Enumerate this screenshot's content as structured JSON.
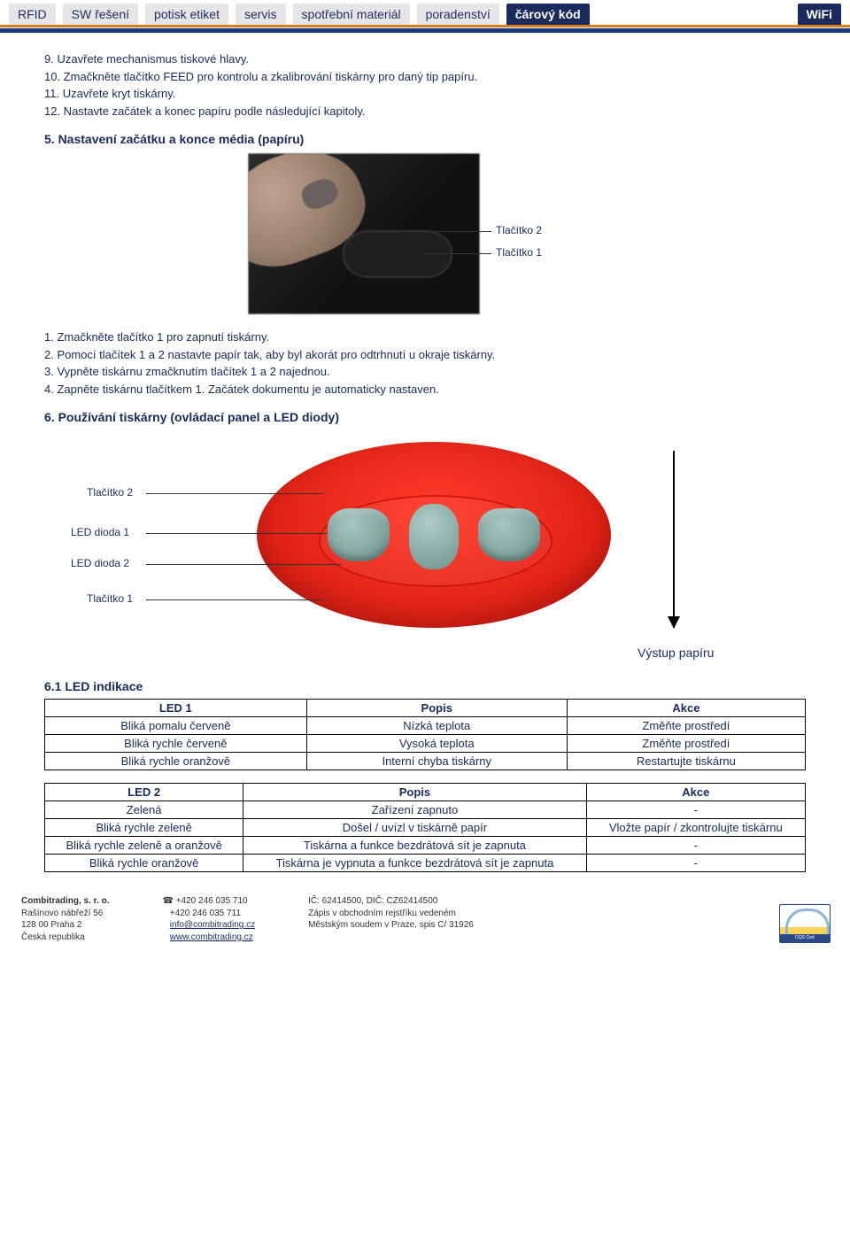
{
  "nav": {
    "items": [
      "RFID",
      "SW řešení",
      "potisk etiket",
      "servis",
      "spotřební materiál",
      "poradenství",
      "čárový kód",
      "WiFi"
    ],
    "active_index": 6
  },
  "instructions_top": [
    "9. Uzavřete mechanismus tiskové hlavy.",
    "10. Zmačkněte tlačítko FEED pro kontrolu a zkalibrování tiskárny pro daný tip papíru.",
    "11. Uzavřete kryt tiskárny.",
    "12. Nastavte začátek a konec papíru podle následující kapitoly."
  ],
  "section5": {
    "heading": "5. Nastavení začátku a konce média (papíru)",
    "label_btn2": "Tlačítko 2",
    "label_btn1": "Tlačítko 1",
    "steps": [
      "1. Zmačkněte tlačítko 1 pro zapnutí tiskárny.",
      "2. Pomocí tlačítek 1 a 2 nastavte papír tak, aby byl akorát pro odtrhnutí u okraje tiskárny.",
      "3. Vypněte tiskárnu zmačknutím tlačítek 1 a 2 najednou.",
      "4. Zapněte tiskárnu tlačítkem 1. Začátek dokumentu je automaticky nastaven."
    ]
  },
  "section6": {
    "heading": "6. Používání tiskárny (ovládací panel a LED diody)",
    "label_btn2": "Tlačítko 2",
    "label_led1": "LED dioda 1",
    "label_led2": "LED dioda 2",
    "label_btn1": "Tlačítko 1",
    "label_output": "Výstup papíru"
  },
  "section61": {
    "heading": "6.1 LED indikace",
    "table1": {
      "headers": [
        "LED 1",
        "Popis",
        "Akce"
      ],
      "rows": [
        [
          "Bliká pomalu červeně",
          "Nízká teplota",
          "Změňte prostředí"
        ],
        [
          "Bliká rychle červeně",
          "Vysoká teplota",
          "Změňte prostředí"
        ],
        [
          "Bliká rychle oranžově",
          "Interní chyba tiskárny",
          "Restartujte tiskárnu"
        ]
      ]
    },
    "table2": {
      "headers": [
        "LED 2",
        "Popis",
        "Akce"
      ],
      "rows": [
        [
          "Zelená",
          "Zařízení zapnuto",
          "-"
        ],
        [
          "Bliká rychle zeleně",
          "Došel / uvízl v tiskárně papír",
          "Vložte papír / zkontrolujte tiskárnu"
        ],
        [
          "Bliká rychle zeleně a oranžově",
          "Tiskárna a funkce bezdrátová sít je zapnuta",
          "-"
        ],
        [
          "Bliká rychle oranžově",
          "Tiskárna je vypnuta a funkce bezdrátová sít je zapnuta",
          "-"
        ]
      ]
    }
  },
  "footer": {
    "col1": [
      "Combitrading, s. r. o.",
      "Rašínovo nábřeží 56",
      "128 00  Praha 2",
      "Česká republika"
    ],
    "col2_phone_icon": "☎",
    "col2": [
      "+420 246 035 710",
      "+420 246 035 711"
    ],
    "col2_links": [
      "info@combitrading.cz",
      "www.combitrading.cz"
    ],
    "col3": [
      "IČ: 62414500, DIČ: CZ62414500",
      "Zápis v obchodním rejstříku vedeném",
      "Městským soudem v Praze, spis C/ 31926"
    ],
    "cert_label": "DQS Cert"
  },
  "colors": {
    "brand_navy": "#1a2a5c",
    "brand_orange": "#d97c1a",
    "tab_bg": "#e6e6e6",
    "oval_red": "#e02015"
  }
}
